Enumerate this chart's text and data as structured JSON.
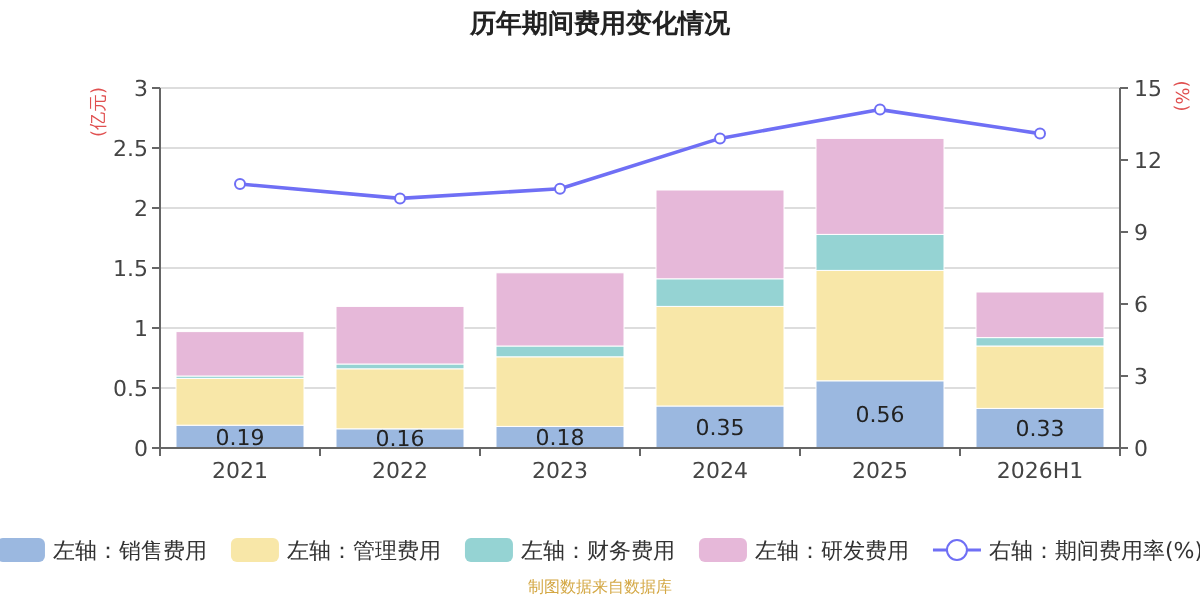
{
  "chart_data": {
    "type": "bar",
    "stacked": true,
    "title": "历年期间费用变化情况",
    "ylabel": "(亿元)",
    "y2label": "(%)",
    "categories": [
      "2021",
      "2022",
      "2023",
      "2024",
      "2025",
      "2026H1"
    ],
    "ylim": [
      0,
      3
    ],
    "yticks": [
      0,
      0.5,
      1,
      1.5,
      2,
      2.5,
      3
    ],
    "y2lim": [
      0,
      15
    ],
    "y2ticks": [
      0,
      3,
      6,
      9,
      12,
      15
    ],
    "grid": "y",
    "legend": "bottom",
    "series": [
      {
        "name": "左轴：销售费用",
        "color": "#9bb8e0",
        "values": [
          0.19,
          0.16,
          0.18,
          0.35,
          0.56,
          0.33
        ],
        "value_labels": [
          "0.19",
          "0.16",
          "0.18",
          "0.35",
          "0.56",
          "0.33"
        ]
      },
      {
        "name": "左轴：管理费用",
        "color": "#f8e7a8",
        "values": [
          0.39,
          0.5,
          0.58,
          0.83,
          0.92,
          0.52
        ]
      },
      {
        "name": "左轴：财务费用",
        "color": "#95d3d3",
        "values": [
          0.02,
          0.04,
          0.09,
          0.23,
          0.3,
          0.07
        ]
      },
      {
        "name": "左轴：研发费用",
        "color": "#e6b8d9",
        "values": [
          0.37,
          0.48,
          0.61,
          0.74,
          0.8,
          0.38
        ]
      },
      {
        "name": "右轴：期间费用率(%)",
        "type": "line",
        "axis": "y2",
        "marker": "circle",
        "color": "#6f6ff5",
        "values": [
          11.0,
          10.4,
          10.8,
          12.9,
          14.1,
          13.1
        ]
      }
    ],
    "annotations": [
      "制图数据来自数据库"
    ]
  }
}
